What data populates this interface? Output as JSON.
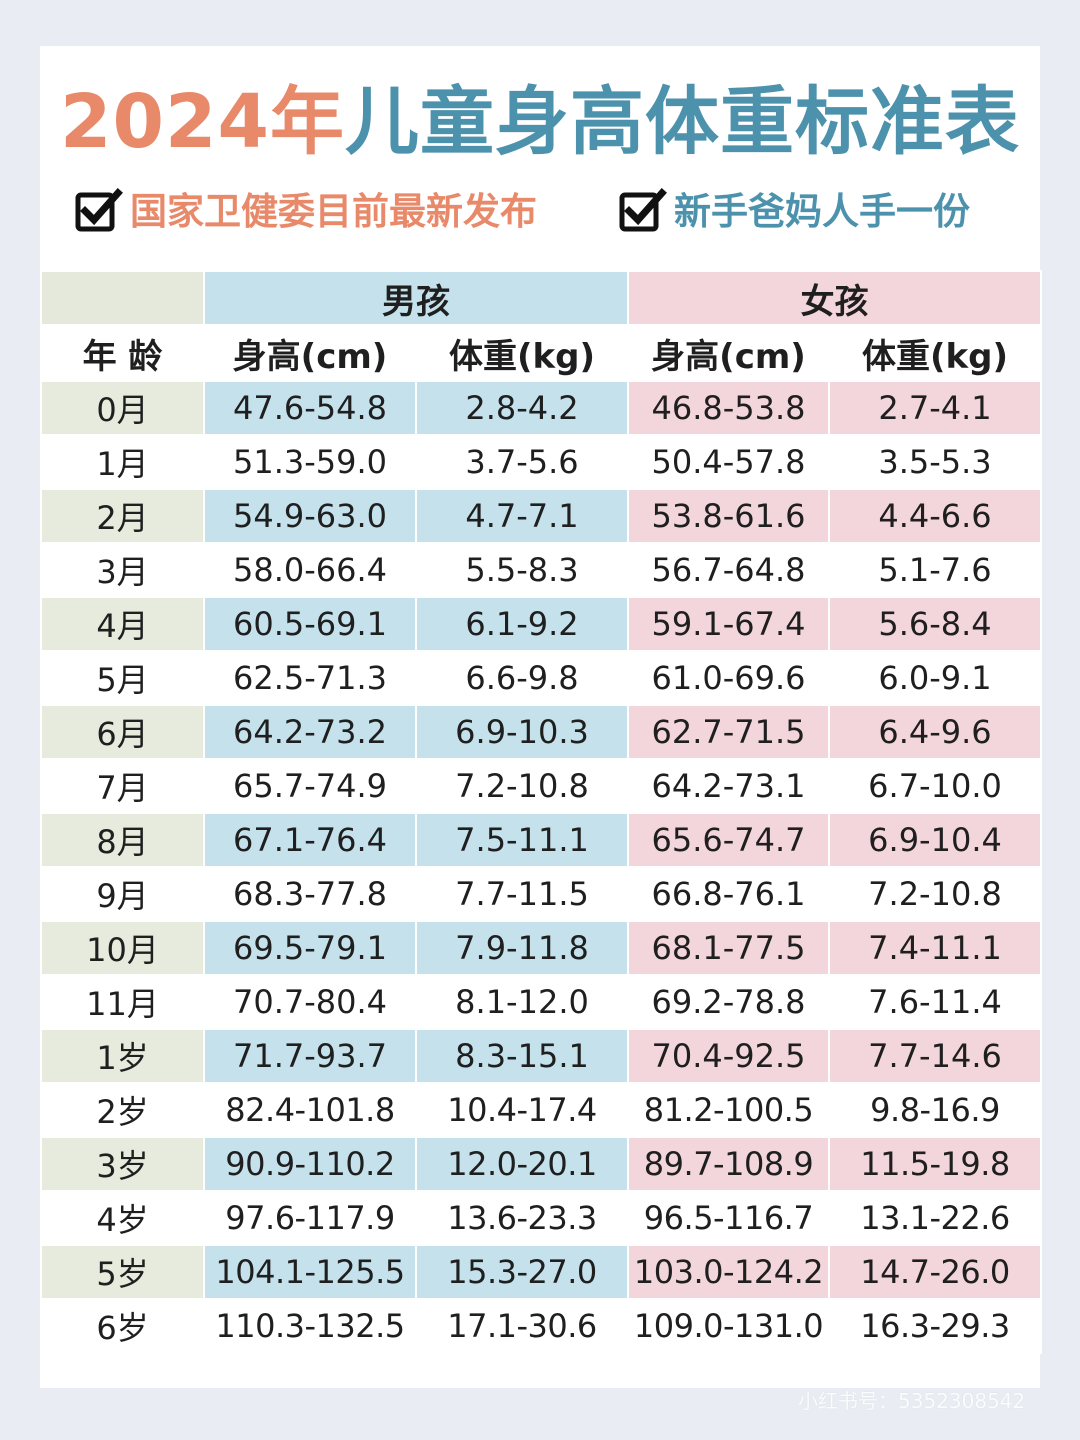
{
  "title": {
    "year": "2024年",
    "main": "儿童身高体重标准表"
  },
  "subtitle": {
    "left": "国家卫健委目前最新发布",
    "right": "新手爸妈人手一份",
    "icon": "checkbox-icon"
  },
  "table": {
    "corner": "",
    "groups": {
      "boy": "男孩",
      "girl": "女孩"
    },
    "headers": {
      "age": "年 龄",
      "boy_height": "身高(cm)",
      "boy_weight": "体重(kg)",
      "girl_height": "身高(cm)",
      "girl_weight": "体重(kg)"
    },
    "rows": [
      {
        "age": "0月",
        "boy_height": "47.6-54.8",
        "boy_weight": "2.8-4.2",
        "girl_height": "46.8-53.8",
        "girl_weight": "2.7-4.1"
      },
      {
        "age": "1月",
        "boy_height": "51.3-59.0",
        "boy_weight": "3.7-5.6",
        "girl_height": "50.4-57.8",
        "girl_weight": "3.5-5.3"
      },
      {
        "age": "2月",
        "boy_height": "54.9-63.0",
        "boy_weight": "4.7-7.1",
        "girl_height": "53.8-61.6",
        "girl_weight": "4.4-6.6"
      },
      {
        "age": "3月",
        "boy_height": "58.0-66.4",
        "boy_weight": "5.5-8.3",
        "girl_height": "56.7-64.8",
        "girl_weight": "5.1-7.6"
      },
      {
        "age": "4月",
        "boy_height": "60.5-69.1",
        "boy_weight": "6.1-9.2",
        "girl_height": "59.1-67.4",
        "girl_weight": "5.6-8.4"
      },
      {
        "age": "5月",
        "boy_height": "62.5-71.3",
        "boy_weight": "6.6-9.8",
        "girl_height": "61.0-69.6",
        "girl_weight": "6.0-9.1"
      },
      {
        "age": "6月",
        "boy_height": "64.2-73.2",
        "boy_weight": "6.9-10.3",
        "girl_height": "62.7-71.5",
        "girl_weight": "6.4-9.6"
      },
      {
        "age": "7月",
        "boy_height": "65.7-74.9",
        "boy_weight": "7.2-10.8",
        "girl_height": "64.2-73.1",
        "girl_weight": "6.7-10.0"
      },
      {
        "age": "8月",
        "boy_height": "67.1-76.4",
        "boy_weight": "7.5-11.1",
        "girl_height": "65.6-74.7",
        "girl_weight": "6.9-10.4"
      },
      {
        "age": "9月",
        "boy_height": "68.3-77.8",
        "boy_weight": "7.7-11.5",
        "girl_height": "66.8-76.1",
        "girl_weight": "7.2-10.8"
      },
      {
        "age": "10月",
        "boy_height": "69.5-79.1",
        "boy_weight": "7.9-11.8",
        "girl_height": "68.1-77.5",
        "girl_weight": "7.4-11.1"
      },
      {
        "age": "11月",
        "boy_height": "70.7-80.4",
        "boy_weight": "8.1-12.0",
        "girl_height": "69.2-78.8",
        "girl_weight": "7.6-11.4"
      },
      {
        "age": "1岁",
        "boy_height": "71.7-93.7",
        "boy_weight": "8.3-15.1",
        "girl_height": "70.4-92.5",
        "girl_weight": "7.7-14.6"
      },
      {
        "age": "2岁",
        "boy_height": "82.4-101.8",
        "boy_weight": "10.4-17.4",
        "girl_height": "81.2-100.5",
        "girl_weight": "9.8-16.9"
      },
      {
        "age": "3岁",
        "boy_height": "90.9-110.2",
        "boy_weight": "12.0-20.1",
        "girl_height": "89.7-108.9",
        "girl_weight": "11.5-19.8"
      },
      {
        "age": "4岁",
        "boy_height": "97.6-117.9",
        "boy_weight": "13.6-23.3",
        "girl_height": "96.5-116.7",
        "girl_weight": "13.1-22.6"
      },
      {
        "age": "5岁",
        "boy_height": "104.1-125.5",
        "boy_weight": "15.3-27.0",
        "girl_height": "103.0-124.2",
        "girl_weight": "14.7-26.0"
      },
      {
        "age": "6岁",
        "boy_height": "110.3-132.5",
        "boy_weight": "17.1-30.6",
        "girl_height": "109.0-131.0",
        "girl_weight": "16.3-29.3"
      }
    ]
  },
  "watermark": "小红书号：5352308542",
  "colors": {
    "accent_orange": "#e8896a",
    "accent_blue": "#4d92ad",
    "boy_fill": "#c4e1ec",
    "girl_fill": "#f3d6dc",
    "age_fill": "#e6ebdd"
  }
}
